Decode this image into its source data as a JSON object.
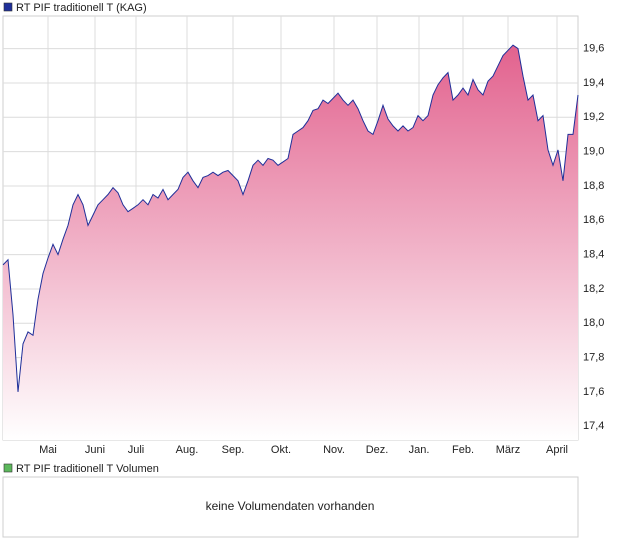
{
  "chart_data": {
    "type": "area",
    "series": [
      {
        "name": "RT PIF traditionell T (KAG)",
        "color": "#1f2f99",
        "fill": "#e2628e",
        "values": [
          18.34,
          18.37,
          18.05,
          17.6,
          17.88,
          17.95,
          17.93,
          18.14,
          18.29,
          18.38,
          18.46,
          18.4,
          18.49,
          18.57,
          18.69,
          18.75,
          18.69,
          18.57,
          18.63,
          18.69,
          18.72,
          18.75,
          18.79,
          18.76,
          18.69,
          18.65,
          18.67,
          18.69,
          18.72,
          18.69,
          18.75,
          18.73,
          18.78,
          18.72,
          18.75,
          18.78,
          18.85,
          18.88,
          18.83,
          18.79,
          18.85,
          18.86,
          18.88,
          18.86,
          18.88,
          18.89,
          18.86,
          18.83,
          18.75,
          18.83,
          18.92,
          18.95,
          18.92,
          18.96,
          18.95,
          18.92,
          18.94,
          18.96,
          19.1,
          19.12,
          19.14,
          19.18,
          19.24,
          19.25,
          19.3,
          19.28,
          19.31,
          19.34,
          19.3,
          19.27,
          19.3,
          19.25,
          19.18,
          19.12,
          19.1,
          19.18,
          19.27,
          19.19,
          19.15,
          19.12,
          19.15,
          19.12,
          19.14,
          19.21,
          19.18,
          19.21,
          19.33,
          19.39,
          19.43,
          19.46,
          19.3,
          19.33,
          19.37,
          19.33,
          19.42,
          19.36,
          19.33,
          19.41,
          19.44,
          19.5,
          19.56,
          19.59,
          19.62,
          19.6,
          19.44,
          19.3,
          19.33,
          19.18,
          19.21,
          19.01,
          18.92,
          19.01,
          18.83,
          19.1,
          19.1,
          19.33
        ]
      }
    ],
    "xlim": [
      0,
      115
    ],
    "xticks": [
      {
        "value": 9,
        "label": "Mai"
      },
      {
        "value": 18.4,
        "label": "Juni"
      },
      {
        "value": 26.6,
        "label": "Juli"
      },
      {
        "value": 36.8,
        "label": "Aug."
      },
      {
        "value": 46,
        "label": "Sep."
      },
      {
        "value": 55.6,
        "label": "Okt."
      },
      {
        "value": 66.2,
        "label": "Nov."
      },
      {
        "value": 74.8,
        "label": "Dez."
      },
      {
        "value": 83.2,
        "label": "Jan."
      },
      {
        "value": 92,
        "label": "Feb."
      },
      {
        "value": 101,
        "label": "März"
      },
      {
        "value": 110.8,
        "label": "April"
      }
    ],
    "ylim": [
      17.32,
      19.79
    ],
    "yticks": [
      {
        "value": 17.4,
        "label": "17,4"
      },
      {
        "value": 17.6,
        "label": "17,6"
      },
      {
        "value": 17.8,
        "label": "17,8"
      },
      {
        "value": 18.0,
        "label": "18,0"
      },
      {
        "value": 18.2,
        "label": "18,2"
      },
      {
        "value": 18.4,
        "label": "18,4"
      },
      {
        "value": 18.6,
        "label": "18,6"
      },
      {
        "value": 18.8,
        "label": "18,8"
      },
      {
        "value": 19.0,
        "label": "19,0"
      },
      {
        "value": 19.2,
        "label": "19,2"
      },
      {
        "value": 19.4,
        "label": "19,4"
      },
      {
        "value": 19.6,
        "label": "19,6"
      }
    ],
    "grid": true,
    "volume": {
      "name": "RT PIF traditionell T Volumen",
      "color": "#5cb85c",
      "message": "keine Volumendaten vorhanden"
    }
  }
}
